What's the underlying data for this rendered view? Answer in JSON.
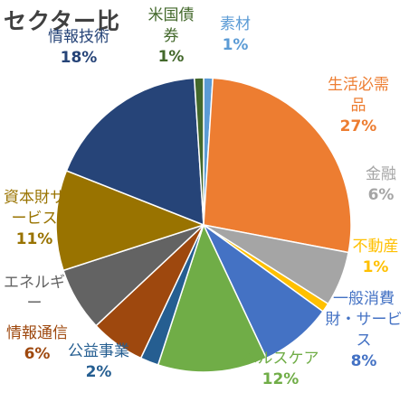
{
  "chart_data": {
    "type": "pie",
    "title": "セクター比",
    "slices": [
      {
        "name": "素材",
        "label": "素材",
        "value": 1,
        "percent": "1%",
        "color": "#5b9bd5"
      },
      {
        "name": "生活必需品",
        "label": "生活必需品",
        "value": 27,
        "percent": "27%",
        "color": "#ed7d31"
      },
      {
        "name": "金融",
        "label": "金融",
        "value": 6,
        "percent": "6%",
        "color": "#a5a5a5"
      },
      {
        "name": "不動産",
        "label": "不動産",
        "value": 1,
        "percent": "1%",
        "color": "#ffc000"
      },
      {
        "name": "一般消費財・サービス",
        "label": "一般消費財・サービス",
        "value": 8,
        "percent": "8%",
        "color": "#4472c4"
      },
      {
        "name": "ヘルスケア",
        "label": "ヘルスケア",
        "value": 12,
        "percent": "12%",
        "color": "#70ad47"
      },
      {
        "name": "公益事業",
        "label": "公益事業",
        "value": 2,
        "percent": "2%",
        "color": "#255e91"
      },
      {
        "name": "情報通信",
        "label": "情報通信",
        "value": 6,
        "percent": "6%",
        "color": "#9e480e"
      },
      {
        "name": "エネルギー",
        "label": "エネルギー",
        "value": 7,
        "percent": "",
        "color": "#636363"
      },
      {
        "name": "資本財サービス",
        "label": "資本財サービス",
        "value": 11,
        "percent": "11%",
        "color": "#997300"
      },
      {
        "name": "情報技術",
        "label": "情報技術",
        "value": 18,
        "percent": "18%",
        "color": "#264478"
      },
      {
        "name": "米国債券",
        "label": "米国債券",
        "value": 1,
        "percent": "1%",
        "color": "#43682b"
      }
    ]
  }
}
